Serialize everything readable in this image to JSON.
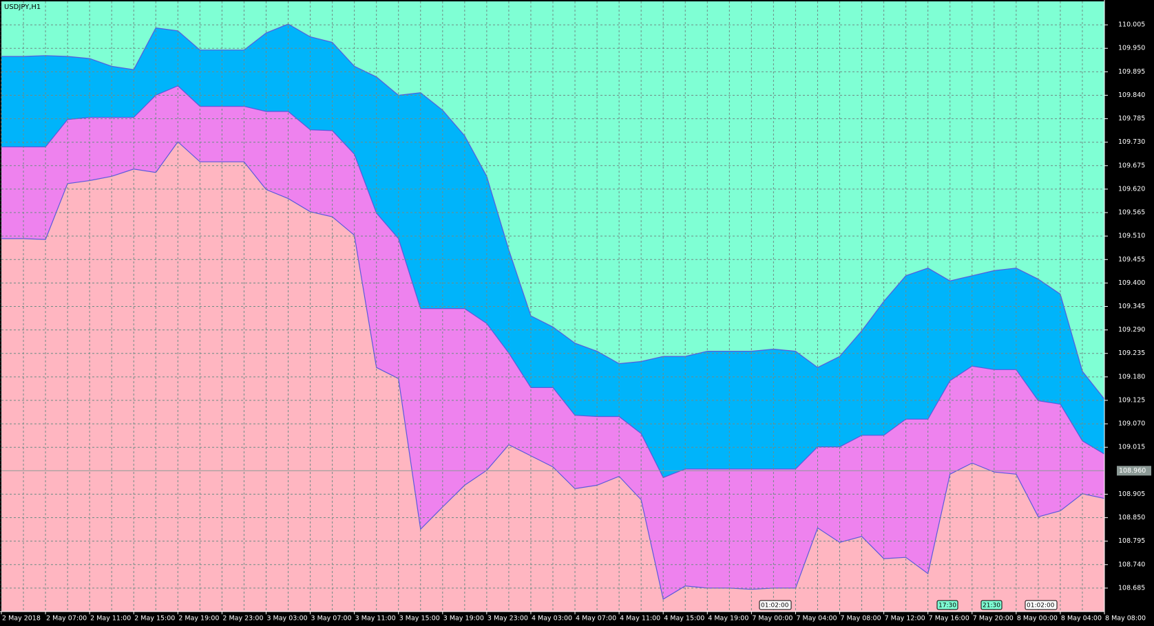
{
  "chart_data": {
    "type": "area-band",
    "title": "USDJPY,H1",
    "categories": [
      "2 May 2018",
      null,
      "2 May 07:00",
      null,
      "2 May 11:00",
      null,
      "2 May 15:00",
      null,
      "2 May 19:00",
      null,
      "2 May 23:00",
      null,
      "3 May 03:00",
      null,
      "3 May 07:00",
      null,
      "3 May 11:00",
      null,
      "3 May 15:00",
      null,
      "3 May 19:00",
      null,
      "3 May 23:00",
      null,
      "4 May 03:00",
      null,
      "4 May 07:00",
      null,
      "4 May 11:00",
      null,
      "4 May 15:00",
      null,
      "4 May 19:00",
      null,
      "7 May 00:00",
      null,
      "7 May 04:00",
      null,
      "7 May 08:00",
      null,
      "7 May 12:00",
      null,
      "7 May 16:00",
      null,
      "7 May 20:00",
      null,
      "8 May 00:00",
      null,
      "8 May 04:00",
      null,
      "8 May 08:00"
    ],
    "series": [
      {
        "color": "#00b4fa",
        "values": [
          109.931,
          109.931,
          109.933,
          109.931,
          109.926,
          109.908,
          109.9,
          109.998,
          109.991,
          109.946,
          109.946,
          109.946,
          109.986,
          110.007,
          109.977,
          109.964,
          109.908,
          109.883,
          109.84,
          109.846,
          109.805,
          109.745,
          109.65,
          109.478,
          109.323,
          109.297,
          109.259,
          109.24,
          109.211,
          109.216,
          109.228,
          109.228,
          109.24,
          109.24,
          109.24,
          109.245,
          109.24,
          109.202,
          109.228,
          109.288,
          109.357,
          109.417,
          109.435,
          109.405,
          109.417,
          109.429,
          109.435,
          109.409,
          109.374,
          109.193,
          109.128
        ]
      },
      {
        "color": "#ee82ee",
        "values": [
          109.719,
          109.719,
          109.719,
          109.783,
          109.788,
          109.788,
          109.788,
          109.84,
          109.862,
          109.814,
          109.814,
          109.814,
          109.802,
          109.802,
          109.759,
          109.757,
          109.702,
          109.564,
          109.504,
          109.34,
          109.34,
          109.34,
          109.305,
          109.236,
          109.155,
          109.155,
          109.09,
          109.087,
          109.087,
          109.047,
          108.944,
          108.964,
          108.964,
          108.964,
          108.964,
          108.964,
          108.964,
          109.016,
          109.016,
          109.043,
          109.043,
          109.081,
          109.081,
          109.171,
          109.205,
          109.197,
          109.197,
          109.124,
          109.116,
          109.03,
          108.999
        ]
      },
      {
        "color": "#ffb6c1",
        "values": [
          109.504,
          109.504,
          109.502,
          109.633,
          109.64,
          109.65,
          109.667,
          109.659,
          109.731,
          109.684,
          109.684,
          109.684,
          109.619,
          109.598,
          109.567,
          109.555,
          109.512,
          109.202,
          109.176,
          108.823,
          108.875,
          108.926,
          108.961,
          109.021,
          108.995,
          108.969,
          108.918,
          108.926,
          108.947,
          108.892,
          108.659,
          108.69,
          108.685,
          108.685,
          108.682,
          108.685,
          108.685,
          108.826,
          108.792,
          108.806,
          108.754,
          108.757,
          108.719,
          108.952,
          108.978,
          108.957,
          108.952,
          108.852,
          108.866,
          108.906,
          108.895
        ]
      }
    ],
    "background": "#7fffd4",
    "line_color": "#5a5adc",
    "ylim": [
      108.63,
      110.06
    ],
    "yticks": [
      110.005,
      {
        "value": 109.95,
        "label": "109.950"
      },
      109.895,
      {
        "value": 109.84,
        "label": "109.840"
      },
      109.785,
      {
        "value": 109.73,
        "label": "109.730"
      },
      109.675,
      {
        "value": 109.62,
        "label": "109.620"
      },
      109.565,
      {
        "value": 109.51,
        "label": "109.510"
      },
      109.455,
      {
        "value": 109.4,
        "label": "109.400"
      },
      109.345,
      {
        "value": 109.29,
        "label": "109.290"
      },
      109.235,
      {
        "value": 109.18,
        "label": "109.180"
      },
      109.125,
      {
        "value": 109.07,
        "label": "109.070"
      },
      109.015,
      108.905,
      {
        "value": 108.85,
        "label": "108.850"
      },
      108.795,
      {
        "value": 108.74,
        "label": "108.740"
      },
      108.685
    ],
    "price_line": {
      "value": 108.96,
      "label": "108.960"
    },
    "time_markers": [
      "01:02:00",
      "17:30",
      "21:30",
      "01:02:00"
    ],
    "grid": true
  }
}
